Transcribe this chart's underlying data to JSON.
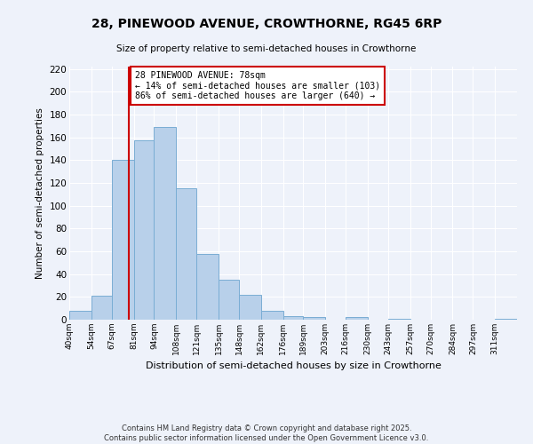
{
  "title": "28, PINEWOOD AVENUE, CROWTHORNE, RG45 6RP",
  "subtitle": "Size of property relative to semi-detached houses in Crowthorne",
  "xlabel": "Distribution of semi-detached houses by size in Crowthorne",
  "ylabel": "Number of semi-detached properties",
  "bin_labels": [
    "40sqm",
    "54sqm",
    "67sqm",
    "81sqm",
    "94sqm",
    "108sqm",
    "121sqm",
    "135sqm",
    "148sqm",
    "162sqm",
    "176sqm",
    "189sqm",
    "203sqm",
    "216sqm",
    "230sqm",
    "243sqm",
    "257sqm",
    "270sqm",
    "284sqm",
    "297sqm",
    "311sqm"
  ],
  "bar_heights": [
    8,
    21,
    140,
    157,
    169,
    115,
    58,
    35,
    22,
    8,
    3,
    2,
    0,
    2,
    0,
    1,
    0,
    0,
    0,
    0,
    1
  ],
  "bar_color": "#b8d0ea",
  "bar_edge_color": "#7aadd4",
  "property_line_x": 78,
  "bin_edges": [
    40,
    54,
    67,
    81,
    94,
    108,
    121,
    135,
    148,
    162,
    176,
    189,
    203,
    216,
    230,
    243,
    257,
    270,
    284,
    297,
    311,
    325
  ],
  "annotation_title": "28 PINEWOOD AVENUE: 78sqm",
  "annotation_line1": "← 14% of semi-detached houses are smaller (103)",
  "annotation_line2": "86% of semi-detached houses are larger (640) →",
  "annotation_box_color": "#ffffff",
  "annotation_box_edge": "#cc0000",
  "vline_color": "#cc0000",
  "ylim": [
    0,
    222
  ],
  "yticks": [
    0,
    20,
    40,
    60,
    80,
    100,
    120,
    140,
    160,
    180,
    200,
    220
  ],
  "footer1": "Contains HM Land Registry data © Crown copyright and database right 2025.",
  "footer2": "Contains public sector information licensed under the Open Government Licence v3.0.",
  "bg_color": "#eef2fa",
  "grid_color": "#ffffff"
}
